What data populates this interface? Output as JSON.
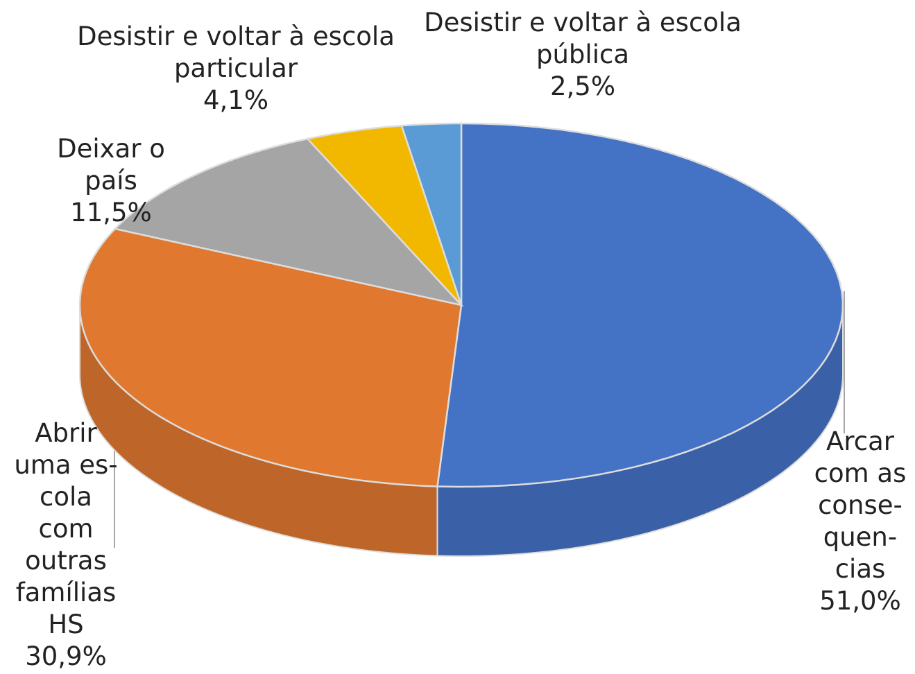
{
  "chart_data": {
    "type": "pie3d",
    "categories": [
      "Arcar com as conse-quen-cias",
      "Abrir uma es-cola com outras famílias HS",
      "Deixar o país",
      "Desistir e voltar à escola particular",
      "Desistir e voltar à escola pública"
    ],
    "values": [
      51.0,
      30.9,
      11.5,
      4.1,
      2.5
    ],
    "value_labels": [
      "51,0%",
      "30,9%",
      "11,5%",
      "4,1%",
      "2,5%"
    ],
    "colors": [
      "#4472c4",
      "#e07830",
      "#a5a5a5",
      "#f2b800",
      "#5b9bd5"
    ]
  }
}
